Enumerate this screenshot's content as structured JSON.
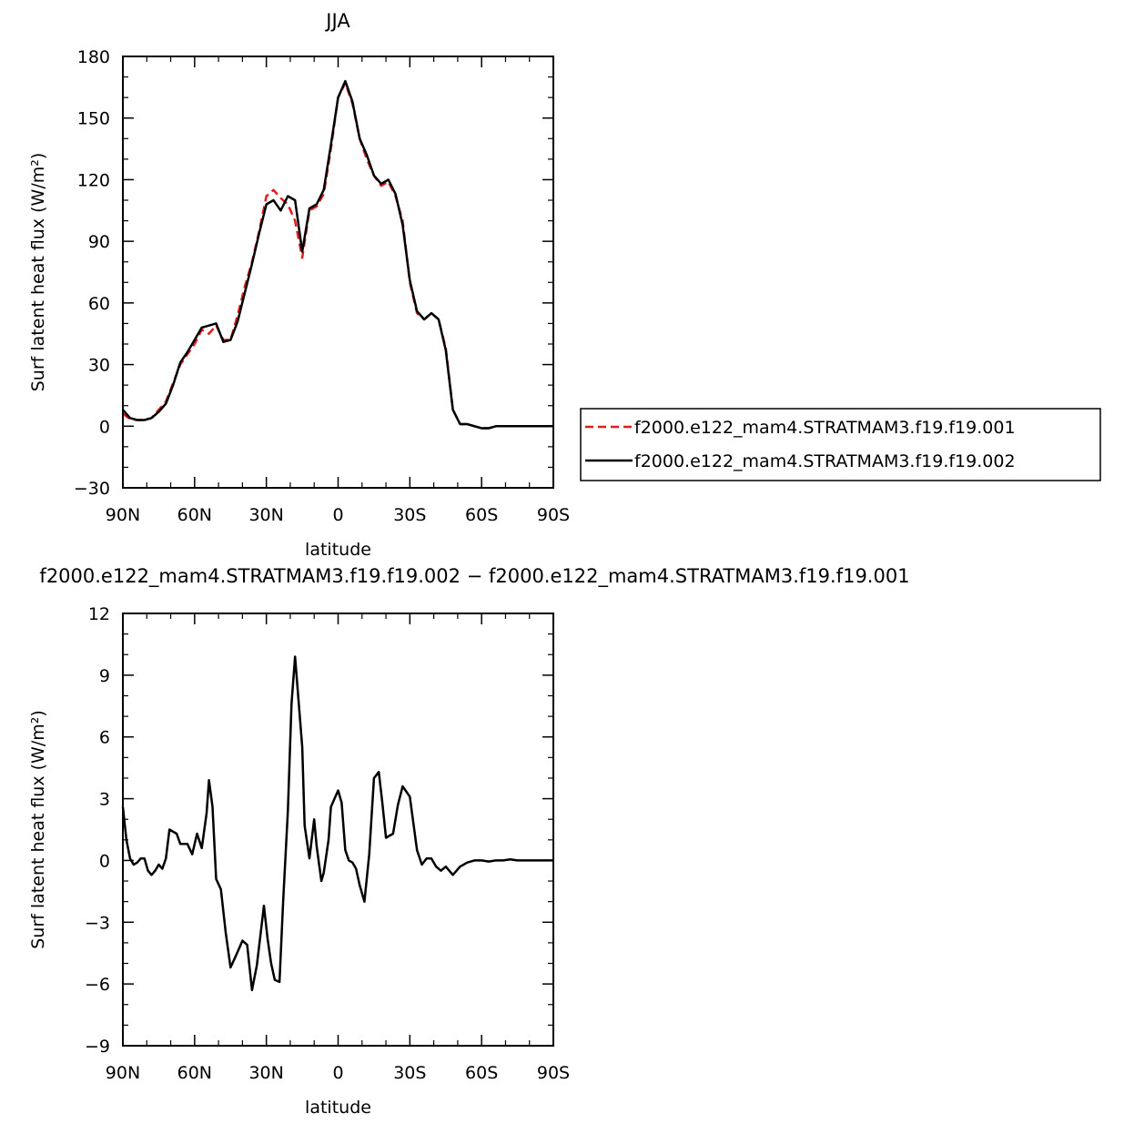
{
  "chart_data": [
    {
      "type": "line",
      "title": "JJA",
      "xlabel": "latitude",
      "ylabel": "Surf latent heat flux (W/m²)",
      "xlim": [
        90,
        -90
      ],
      "ylim": [
        -30,
        180
      ],
      "x_ticks": [
        {
          "value": 90,
          "label": "90N"
        },
        {
          "value": 60,
          "label": "60N"
        },
        {
          "value": 30,
          "label": "30N"
        },
        {
          "value": 0,
          "label": "0"
        },
        {
          "value": -30,
          "label": "30S"
        },
        {
          "value": -60,
          "label": "60S"
        },
        {
          "value": -90,
          "label": "90S"
        }
      ],
      "y_ticks": [
        {
          "value": -30,
          "label": "−30"
        },
        {
          "value": 0,
          "label": "0"
        },
        {
          "value": 30,
          "label": "30"
        },
        {
          "value": 60,
          "label": "60"
        },
        {
          "value": 90,
          "label": "90"
        },
        {
          "value": 120,
          "label": "120"
        },
        {
          "value": 150,
          "label": "150"
        },
        {
          "value": 180,
          "label": "180"
        }
      ],
      "legend_position": "right",
      "series": [
        {
          "name": "f2000.e122_mam4.STRATMAM3.f19.f19.001",
          "color": "#e41a1c",
          "dash": "dashed",
          "x": [
            90,
            87,
            84,
            81,
            78,
            75,
            72,
            69,
            66,
            63,
            60,
            57,
            54,
            51,
            48,
            45,
            42,
            39,
            36,
            33,
            30,
            27,
            24,
            21,
            18,
            15,
            12,
            9,
            6,
            3,
            0,
            -3,
            -6,
            -9,
            -12,
            -15,
            -18,
            -21,
            -24,
            -27,
            -30,
            -33,
            -36,
            -39,
            -42,
            -45,
            -48,
            -51,
            -54,
            -57,
            -60,
            -63,
            -66,
            -69,
            -72,
            -75,
            -78,
            -81,
            -84,
            -87,
            -90
          ],
          "values": [
            6,
            3.5,
            3,
            3,
            4,
            8,
            12,
            21,
            30,
            35,
            40,
            47,
            45,
            49,
            42,
            42,
            54,
            68,
            80,
            95,
            112,
            115,
            111,
            108,
            100,
            82,
            105,
            107,
            113,
            135,
            160,
            167,
            157,
            140,
            130,
            122,
            117,
            119,
            112,
            100,
            70,
            55,
            52,
            55,
            52,
            38,
            8,
            1,
            1,
            0,
            -1,
            -1,
            0,
            0,
            0,
            0,
            0,
            0,
            0,
            0,
            0
          ]
        },
        {
          "name": "f2000.e122_mam4.STRATMAM3.f19.f19.002",
          "color": "#000000",
          "dash": "solid",
          "x": [
            90,
            87,
            84,
            81,
            78,
            75,
            72,
            69,
            66,
            63,
            60,
            57,
            54,
            51,
            48,
            45,
            42,
            39,
            36,
            33,
            30,
            27,
            24,
            21,
            18,
            15,
            12,
            9,
            6,
            3,
            0,
            -3,
            -6,
            -9,
            -12,
            -15,
            -18,
            -21,
            -24,
            -27,
            -30,
            -33,
            -36,
            -39,
            -42,
            -45,
            -48,
            -51,
            -54,
            -57,
            -60,
            -63,
            -66,
            -69,
            -72,
            -75,
            -78,
            -81,
            -84,
            -87,
            -90
          ],
          "values": [
            8,
            4,
            3,
            3,
            4,
            7,
            11,
            20,
            31,
            36,
            42,
            48,
            49,
            50,
            41,
            42,
            51,
            65,
            79,
            94,
            108,
            110,
            105,
            112,
            110,
            85,
            106,
            108,
            115,
            137,
            160,
            168,
            158,
            140,
            132,
            122,
            118,
            120,
            113,
            98,
            71,
            56,
            52,
            55,
            52,
            37,
            8,
            1,
            1,
            0,
            -1,
            -1,
            0,
            0,
            0,
            0,
            0,
            0,
            0,
            0,
            0
          ]
        }
      ]
    },
    {
      "type": "line",
      "title": "f2000.e122_mam4.STRATMAM3.f19.f19.002 − f2000.e122_mam4.STRATMAM3.f19.f19.001",
      "xlabel": "latitude",
      "ylabel": "Surf latent heat flux (W/m²)",
      "xlim": [
        90,
        -90
      ],
      "ylim": [
        -9,
        12
      ],
      "x_ticks": [
        {
          "value": 90,
          "label": "90N"
        },
        {
          "value": 60,
          "label": "60N"
        },
        {
          "value": 30,
          "label": "30N"
        },
        {
          "value": 0,
          "label": "0"
        },
        {
          "value": -30,
          "label": "30S"
        },
        {
          "value": -60,
          "label": "60S"
        },
        {
          "value": -90,
          "label": "90S"
        }
      ],
      "y_ticks": [
        {
          "value": -9,
          "label": "−9"
        },
        {
          "value": -6,
          "label": "−6"
        },
        {
          "value": -3,
          "label": "−3"
        },
        {
          "value": 0,
          "label": "0"
        },
        {
          "value": 3,
          "label": "3"
        },
        {
          "value": 6,
          "label": "6"
        },
        {
          "value": 9,
          "label": "9"
        },
        {
          "value": 12,
          "label": "12"
        }
      ],
      "series": [
        {
          "color": "#000000",
          "dash": "solid",
          "x": [
            90,
            88.5,
            87,
            85.5,
            84,
            82.5,
            81,
            79.5,
            78,
            76.5,
            75,
            73.5,
            72,
            70.5,
            69,
            67.5,
            66,
            63,
            61,
            59,
            57,
            55,
            54,
            52.5,
            51,
            49,
            47,
            45,
            43,
            40,
            38,
            36,
            34,
            31,
            29.5,
            28,
            26.5,
            24.5,
            23,
            21,
            19.5,
            18,
            15,
            14,
            12,
            10,
            9,
            7,
            6,
            4,
            3,
            0,
            -1.5,
            -3,
            -4.5,
            -6,
            -7.5,
            -9,
            -11,
            -13,
            -15,
            -17,
            -18.5,
            -20,
            -23,
            -25,
            -27,
            -30,
            -33,
            -35,
            -37,
            -39,
            -41,
            -43,
            -45,
            -48,
            -51,
            -54,
            -57,
            -60,
            -63,
            -66,
            -69,
            -72,
            -75,
            -78,
            -81,
            -84,
            -87,
            -90
          ],
          "values": [
            2.6,
            1,
            0.1,
            -0.2,
            -0.1,
            0.1,
            0.1,
            -0.5,
            -0.7,
            -0.5,
            -0.2,
            -0.4,
            0.1,
            1.5,
            1.4,
            1.3,
            0.8,
            0.8,
            0.3,
            1.3,
            0.6,
            2.3,
            3.9,
            2.6,
            -0.9,
            -1.4,
            -3.5,
            -5.2,
            -4.7,
            -3.9,
            -4.1,
            -6.3,
            -5.1,
            -2.2,
            -3.8,
            -5,
            -5.8,
            -5.9,
            -2,
            2.4,
            7.6,
            9.9,
            5.5,
            1.7,
            0.1,
            2,
            0.7,
            -1,
            -0.6,
            1,
            2.6,
            3.4,
            2.8,
            0.5,
            0,
            -0.1,
            -0.4,
            -1.2,
            -2,
            0.3,
            4,
            4.3,
            2.8,
            1.1,
            1.3,
            2.7,
            3.6,
            3.1,
            0.5,
            -0.2,
            0.1,
            0.1,
            -0.3,
            -0.5,
            -0.3,
            -0.7,
            -0.3,
            -0.1,
            0,
            0,
            -0.05,
            0,
            0,
            0.05,
            0,
            0,
            0,
            0,
            0,
            0
          ]
        }
      ]
    }
  ]
}
